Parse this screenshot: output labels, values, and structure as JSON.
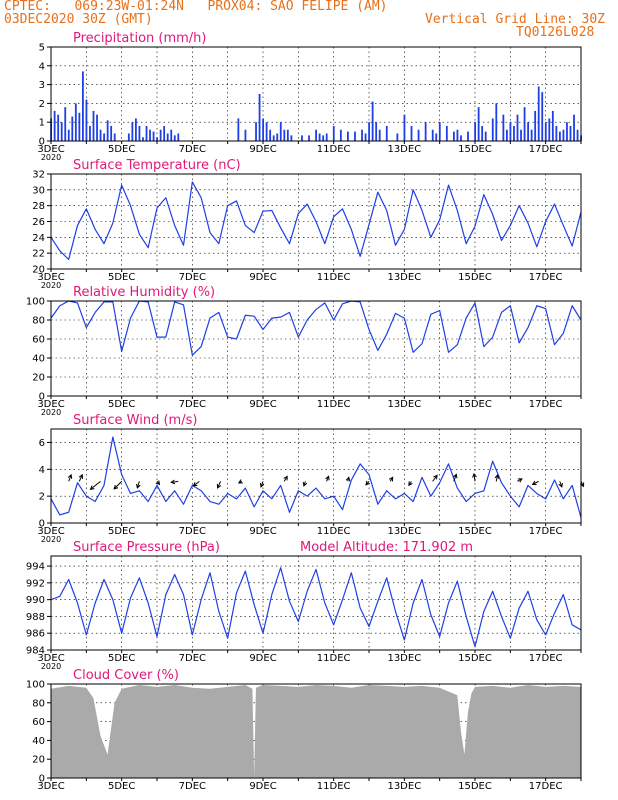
{
  "header": {
    "line1": "CPTEC:   069:23W-01:24N   PROX04: SAO FELIPE (AM)",
    "line2": "03DEC2020 30Z (GMT)",
    "grid_note": "Vertical Grid Line: 30Z",
    "run_code": "TQ0126L028"
  },
  "colors": {
    "header": "#e8701a",
    "title": "#e0187a",
    "line": "#1f3fe6",
    "cloud": "#aaaaaa",
    "arrow": "#000000"
  },
  "x_tick_labels": [
    "3DEC",
    "5DEC",
    "7DEC",
    "9DEC",
    "11DEC",
    "13DEC",
    "15DEC",
    "17DEC"
  ],
  "year_label": "2020",
  "chart_data": [
    {
      "id": "precip",
      "type": "bar",
      "title": "Precipitation (mm/h)",
      "ylim": [
        0,
        5
      ],
      "yticks": [
        0,
        1,
        2,
        3,
        4,
        5
      ],
      "grid": true,
      "x_days": [
        3.0,
        3.1,
        3.2,
        3.3,
        3.4,
        3.5,
        3.6,
        3.7,
        3.8,
        3.9,
        4.0,
        4.1,
        4.2,
        4.3,
        4.4,
        4.5,
        4.6,
        4.7,
        4.8,
        5.2,
        5.3,
        5.4,
        5.5,
        5.6,
        5.7,
        5.8,
        5.9,
        6.0,
        6.1,
        6.2,
        6.3,
        6.4,
        6.5,
        6.6,
        8.3,
        8.5,
        8.8,
        8.9,
        9.0,
        9.1,
        9.2,
        9.3,
        9.4,
        9.5,
        9.6,
        9.7,
        9.8,
        10.1,
        10.3,
        10.5,
        10.6,
        10.7,
        10.8,
        11.0,
        11.2,
        11.4,
        11.6,
        11.8,
        11.9,
        12.0,
        12.1,
        12.2,
        12.3,
        12.5,
        12.8,
        13.0,
        13.2,
        13.4,
        13.6,
        13.8,
        13.9,
        14.0,
        14.2,
        14.4,
        14.5,
        14.6,
        14.8,
        15.0,
        15.1,
        15.2,
        15.3,
        15.5,
        15.6,
        15.8,
        15.9,
        16.0,
        16.1,
        16.2,
        16.3,
        16.4,
        16.5,
        16.6,
        16.7,
        16.8,
        16.9,
        17.0,
        17.1,
        17.2,
        17.3,
        17.4,
        17.5,
        17.6,
        17.7,
        17.8,
        17.9,
        18.0
      ],
      "values": [
        1.2,
        1.6,
        1.4,
        1.0,
        1.8,
        0.6,
        1.3,
        2.0,
        1.5,
        3.7,
        2.2,
        0.8,
        1.6,
        1.4,
        0.6,
        0.4,
        1.1,
        0.8,
        0.4,
        0.4,
        1.0,
        1.2,
        0.8,
        0.2,
        0.8,
        0.6,
        0.5,
        0.2,
        0.6,
        0.8,
        0.4,
        0.6,
        0.3,
        0.4,
        1.2,
        0.6,
        1.0,
        2.5,
        1.2,
        1.0,
        0.6,
        0.3,
        0.4,
        1.0,
        0.6,
        0.6,
        0.3,
        0.3,
        0.3,
        0.6,
        0.4,
        0.3,
        0.4,
        0.8,
        0.6,
        0.5,
        0.5,
        0.6,
        0.4,
        1.0,
        2.1,
        1.0,
        0.6,
        0.8,
        0.4,
        1.4,
        0.8,
        0.6,
        1.0,
        0.6,
        0.4,
        1.0,
        0.8,
        0.5,
        0.6,
        0.3,
        0.5,
        1.0,
        1.8,
        0.8,
        0.5,
        1.2,
        2.0,
        1.4,
        0.6,
        1.0,
        0.8,
        1.4,
        0.6,
        1.8,
        1.0,
        0.6,
        1.6,
        2.9,
        2.6,
        1.0,
        1.2,
        1.6,
        0.8,
        0.5,
        0.6,
        1.0,
        0.8,
        1.4,
        0.6,
        0.3
      ]
    },
    {
      "id": "temp",
      "type": "line",
      "title": "Surface Temperature (nC)",
      "ylim": [
        20,
        32
      ],
      "yticks": [
        20,
        22,
        24,
        26,
        28,
        30,
        32
      ],
      "grid": true,
      "x_days": [
        3.0,
        3.25,
        3.5,
        3.75,
        4.0,
        4.25,
        4.5,
        4.75,
        5.0,
        5.25,
        5.5,
        5.75,
        6.0,
        6.25,
        6.5,
        6.75,
        7.0,
        7.25,
        7.5,
        7.75,
        8.0,
        8.25,
        8.5,
        8.75,
        9.0,
        9.25,
        9.5,
        9.75,
        10.0,
        10.25,
        10.5,
        10.75,
        11.0,
        11.25,
        11.5,
        11.75,
        12.0,
        12.25,
        12.5,
        12.75,
        13.0,
        13.25,
        13.5,
        13.75,
        14.0,
        14.25,
        14.5,
        14.75,
        15.0,
        15.25,
        15.5,
        15.75,
        16.0,
        16.25,
        16.5,
        16.75,
        17.0,
        17.25,
        17.5,
        17.75,
        18.0
      ],
      "values": [
        24.0,
        22.3,
        21.2,
        25.5,
        27.6,
        25.0,
        23.2,
        25.8,
        30.6,
        28.0,
        24.4,
        22.7,
        27.7,
        29.0,
        25.5,
        23.0,
        31.0,
        29.0,
        24.6,
        23.2,
        28.0,
        28.6,
        25.5,
        24.6,
        27.3,
        27.4,
        25.2,
        23.2,
        27.0,
        28.2,
        26.0,
        23.2,
        26.6,
        27.6,
        25.0,
        21.6,
        25.6,
        29.7,
        27.4,
        23.0,
        25.0,
        30.0,
        27.4,
        24.0,
        26.2,
        30.6,
        27.4,
        23.2,
        25.4,
        29.4,
        26.9,
        23.6,
        25.5,
        28.0,
        25.8,
        22.8,
        26.0,
        28.2,
        25.5,
        22.9,
        27.2
      ]
    },
    {
      "id": "rh",
      "type": "line",
      "title": "Relative Humidity (%)",
      "ylim": [
        0,
        100
      ],
      "yticks": [
        0,
        20,
        40,
        60,
        80,
        100
      ],
      "grid": true,
      "x_days": [
        3.0,
        3.25,
        3.5,
        3.75,
        4.0,
        4.25,
        4.5,
        4.75,
        5.0,
        5.25,
        5.5,
        5.75,
        6.0,
        6.25,
        6.5,
        6.75,
        7.0,
        7.25,
        7.5,
        7.75,
        8.0,
        8.25,
        8.5,
        8.75,
        9.0,
        9.25,
        9.5,
        9.75,
        10.0,
        10.25,
        10.5,
        10.75,
        11.0,
        11.25,
        11.5,
        11.75,
        12.0,
        12.25,
        12.5,
        12.75,
        13.0,
        13.25,
        13.5,
        13.75,
        14.0,
        14.25,
        14.5,
        14.75,
        15.0,
        15.25,
        15.5,
        15.75,
        16.0,
        16.25,
        16.5,
        16.75,
        17.0,
        17.25,
        17.5,
        17.75,
        18.0
      ],
      "values": [
        82,
        95,
        100,
        98,
        72,
        88,
        99,
        99,
        47,
        82,
        100,
        99,
        62,
        62,
        99,
        96,
        43,
        52,
        82,
        88,
        62,
        60,
        85,
        84,
        70,
        82,
        83,
        88,
        62,
        80,
        91,
        98,
        80,
        97,
        100,
        99,
        70,
        48,
        65,
        87,
        82,
        46,
        55,
        86,
        90,
        46,
        54,
        82,
        98,
        52,
        62,
        88,
        95,
        56,
        72,
        95,
        92,
        54,
        66,
        95,
        80
      ]
    },
    {
      "id": "wind",
      "type": "line",
      "title": "Surface Wind (m/s)",
      "ylim": [
        0,
        7
      ],
      "yticks": [
        0,
        2,
        4,
        6
      ],
      "grid": true,
      "x_days": [
        3.0,
        3.25,
        3.5,
        3.75,
        4.0,
        4.25,
        4.5,
        4.75,
        5.0,
        5.25,
        5.5,
        5.75,
        6.0,
        6.25,
        6.5,
        6.75,
        7.0,
        7.25,
        7.5,
        7.75,
        8.0,
        8.25,
        8.5,
        8.75,
        9.0,
        9.25,
        9.5,
        9.75,
        10.0,
        10.25,
        10.5,
        10.75,
        11.0,
        11.25,
        11.5,
        11.75,
        12.0,
        12.25,
        12.5,
        12.75,
        13.0,
        13.25,
        13.5,
        13.75,
        14.0,
        14.25,
        14.5,
        14.75,
        15.0,
        15.25,
        15.5,
        15.75,
        16.0,
        16.25,
        16.5,
        16.75,
        17.0,
        17.25,
        17.5,
        17.75,
        18.0
      ],
      "values": [
        1.8,
        0.6,
        0.8,
        3.0,
        2.0,
        1.6,
        2.8,
        6.4,
        3.6,
        2.2,
        2.4,
        1.6,
        2.8,
        1.6,
        2.4,
        1.4,
        2.8,
        2.4,
        1.6,
        1.4,
        2.2,
        1.8,
        2.6,
        1.2,
        2.4,
        1.8,
        2.8,
        0.8,
        2.4,
        2.0,
        2.6,
        1.8,
        2.0,
        1.0,
        3.2,
        4.4,
        3.6,
        1.4,
        2.4,
        1.8,
        2.2,
        1.6,
        3.4,
        2.0,
        3.0,
        4.4,
        2.6,
        1.6,
        2.2,
        2.4,
        4.6,
        3.0,
        2.0,
        1.2,
        2.8,
        2.2,
        1.8,
        3.2,
        1.8,
        2.8,
        0.4
      ],
      "vectors": {
        "x_days": [
          3.5,
          3.8,
          4.4,
          5.0,
          5.5,
          6.0,
          6.6,
          7.2,
          7.8,
          8.4,
          9.0,
          9.6,
          10.2,
          10.8,
          11.4,
          12.0,
          12.6,
          13.2,
          13.8,
          14.4,
          15.0,
          15.6,
          16.2,
          16.8,
          17.4,
          18.0
        ],
        "u": [
          0.5,
          0.6,
          -2.0,
          -1.5,
          -0.4,
          0.5,
          -1.4,
          -1.2,
          -0.6,
          -0.6,
          -0.4,
          0.6,
          -0.3,
          0.4,
          0.2,
          -0.6,
          0.5,
          -0.5,
          0.9,
          0.5,
          -0.2,
          0.3,
          0.9,
          -1.2,
          0.4,
          0.5
        ],
        "v": [
          1.3,
          1.3,
          -1.6,
          -1.5,
          -1.3,
          -0.6,
          -0.2,
          -0.9,
          -1.3,
          -0.3,
          -1.1,
          1.0,
          -0.9,
          1.0,
          0.8,
          -0.7,
          0.8,
          -0.8,
          1.2,
          1.4,
          1.5,
          1.3,
          0.5,
          -0.6,
          -1.1,
          -1.0
        ]
      }
    },
    {
      "id": "pres",
      "type": "line",
      "title": "Surface Pressure (hPa)",
      "subtitle": "Model Altitude: 171.902 m",
      "ylim": [
        984,
        995.2
      ],
      "yticks": [
        984,
        986,
        988,
        990,
        992,
        994
      ],
      "grid": true,
      "x_days": [
        3.0,
        3.25,
        3.5,
        3.75,
        4.0,
        4.25,
        4.5,
        4.75,
        5.0,
        5.25,
        5.5,
        5.75,
        6.0,
        6.25,
        6.5,
        6.75,
        7.0,
        7.25,
        7.5,
        7.75,
        8.0,
        8.25,
        8.5,
        8.75,
        9.0,
        9.25,
        9.5,
        9.75,
        10.0,
        10.25,
        10.5,
        10.75,
        11.0,
        11.25,
        11.5,
        11.75,
        12.0,
        12.25,
        12.5,
        12.75,
        13.0,
        13.25,
        13.5,
        13.75,
        14.0,
        14.25,
        14.5,
        14.75,
        15.0,
        15.25,
        15.5,
        15.75,
        16.0,
        16.25,
        16.5,
        16.75,
        17.0,
        17.25,
        17.5,
        17.75,
        18.0
      ],
      "values": [
        990.0,
        990.4,
        992.4,
        989.6,
        985.8,
        989.6,
        992.4,
        990.0,
        986.0,
        990.2,
        992.6,
        989.6,
        985.6,
        990.6,
        993.0,
        990.6,
        985.8,
        990.0,
        993.2,
        988.6,
        985.4,
        990.8,
        993.4,
        989.4,
        986.0,
        990.6,
        993.8,
        989.8,
        987.4,
        991.0,
        993.6,
        989.6,
        987.0,
        990.0,
        993.2,
        989.0,
        986.8,
        989.8,
        992.6,
        988.6,
        985.2,
        989.6,
        992.4,
        988.2,
        985.6,
        989.6,
        992.2,
        988.0,
        984.4,
        988.6,
        991.0,
        988.0,
        985.4,
        989.0,
        991.0,
        987.6,
        985.8,
        988.4,
        990.6,
        987.0,
        986.4
      ]
    },
    {
      "id": "cloud",
      "type": "area",
      "title": "Cloud Cover (%)",
      "ylim": [
        0,
        100
      ],
      "yticks": [
        0,
        20,
        40,
        60,
        80,
        100
      ],
      "grid": true,
      "x_days": [
        3.0,
        3.5,
        4.0,
        4.2,
        4.4,
        4.6,
        4.8,
        5.0,
        5.5,
        6.0,
        6.5,
        7.0,
        7.5,
        8.0,
        8.5,
        8.7,
        8.75,
        8.8,
        9.0,
        9.5,
        10.0,
        10.5,
        11.0,
        11.5,
        12.0,
        12.5,
        13.0,
        13.5,
        14.0,
        14.5,
        14.6,
        14.7,
        14.8,
        14.9,
        15.0,
        15.5,
        16.0,
        16.5,
        17.0,
        17.5,
        18.0
      ],
      "values": [
        95,
        98,
        96,
        85,
        45,
        25,
        80,
        95,
        99,
        97,
        99,
        96,
        95,
        97,
        99,
        95,
        2,
        96,
        99,
        98,
        97,
        99,
        98,
        96,
        99,
        98,
        97,
        98,
        96,
        88,
        50,
        25,
        70,
        90,
        97,
        98,
        96,
        99,
        97,
        98,
        97
      ]
    }
  ]
}
